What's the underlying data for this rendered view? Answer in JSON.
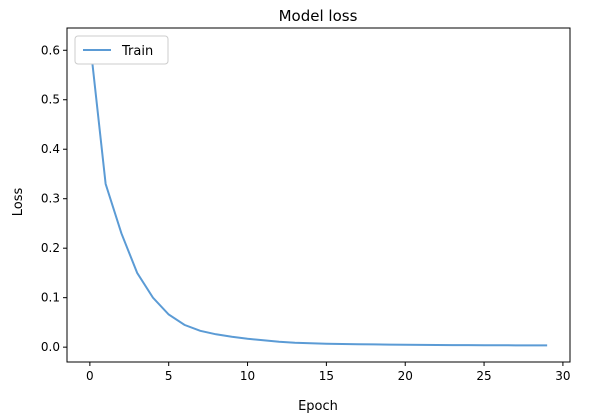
{
  "chart_data": {
    "type": "line",
    "title": "Model loss",
    "xlabel": "Epoch",
    "ylabel": "Loss",
    "xlim": [
      -1.45,
      30.45
    ],
    "ylim": [
      -0.03,
      0.645
    ],
    "xticks": [
      0,
      5,
      10,
      15,
      20,
      25,
      30
    ],
    "yticks": [
      0.0,
      0.1,
      0.2,
      0.3,
      0.4,
      0.5,
      0.6
    ],
    "xtick_labels": [
      "0",
      "5",
      "10",
      "15",
      "20",
      "25",
      "30"
    ],
    "ytick_labels": [
      "0.0",
      "0.1",
      "0.2",
      "0.3",
      "0.4",
      "0.5",
      "0.6"
    ],
    "grid": false,
    "legend": {
      "position": "top-left",
      "entries": [
        "Train"
      ]
    },
    "series": [
      {
        "name": "Train",
        "color": "#5b9bd5",
        "x": [
          0,
          1,
          2,
          3,
          4,
          5,
          6,
          7,
          8,
          9,
          10,
          11,
          12,
          13,
          14,
          15,
          16,
          17,
          18,
          19,
          20,
          21,
          22,
          23,
          24,
          25,
          26,
          27,
          28,
          29
        ],
        "y": [
          0.62,
          0.33,
          0.23,
          0.15,
          0.1,
          0.066,
          0.045,
          0.033,
          0.026,
          0.021,
          0.017,
          0.014,
          0.011,
          0.009,
          0.008,
          0.007,
          0.0065,
          0.006,
          0.0055,
          0.005,
          0.0048,
          0.0045,
          0.0043,
          0.0041,
          0.004,
          0.0039,
          0.0038,
          0.0037,
          0.0036,
          0.0035
        ]
      }
    ]
  }
}
